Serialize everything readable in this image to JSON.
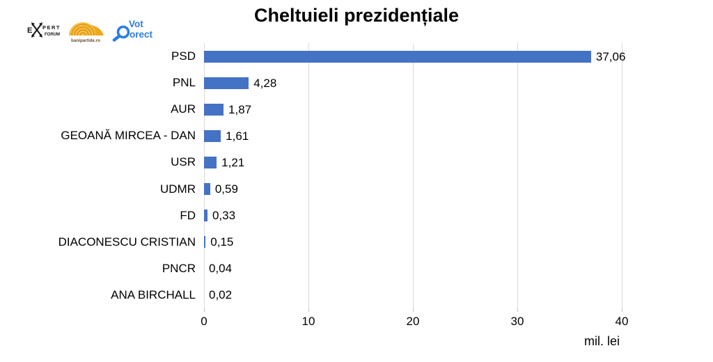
{
  "header": {
    "title": "Cheltuieli prezidențiale",
    "logos": {
      "expert_forum": {
        "e": "E",
        "pert": "PERT",
        "forum": "FORUM"
      },
      "banipartide": {
        "label": "banipartide.ro"
      },
      "vot_corect": {
        "line1": "Vot",
        "line2": "orect"
      }
    }
  },
  "chart_data": {
    "type": "bar",
    "orientation": "horizontal",
    "title": "Cheltuieli prezidențiale",
    "categories": [
      "PSD",
      "PNL",
      "AUR",
      "GEOANĂ MIRCEA - DAN",
      "USR",
      "UDMR",
      "FD",
      "DIACONESCU CRISTIAN",
      "PNCR",
      "ANA BIRCHALL"
    ],
    "values": [
      37.06,
      4.28,
      1.87,
      1.61,
      1.21,
      0.59,
      0.33,
      0.15,
      0.04,
      0.02
    ],
    "value_labels": [
      "37,06",
      "4,28",
      "1,87",
      "1,61",
      "1,21",
      "0,59",
      "0,33",
      "0,15",
      "0,04",
      "0,02"
    ],
    "xlabel": "mil. lei",
    "ylabel": "",
    "xlim": [
      0,
      40
    ],
    "x_ticks": [
      0,
      10,
      20,
      30,
      40
    ],
    "x_tick_labels": [
      "0",
      "10",
      "20",
      "30",
      "40"
    ],
    "grid": "vertical-only",
    "legend": "none",
    "bar_color": "#4472C4",
    "gridline_color": "#D9D9D9",
    "axis_tick_color": "#BFBFBF",
    "text_color": "#000000"
  }
}
